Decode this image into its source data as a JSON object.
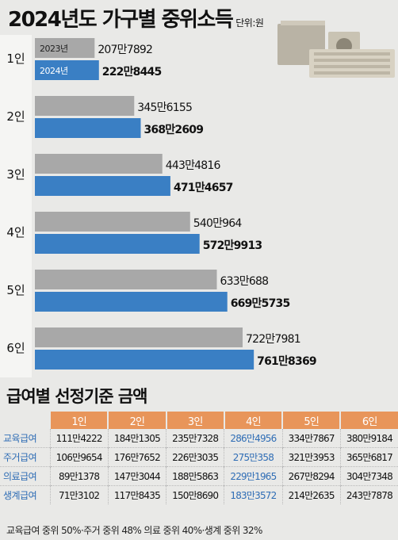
{
  "title": "2024년도 가구별 중위소득",
  "unit": "단위:원",
  "chart_data": {
    "type": "bar",
    "orientation": "horizontal",
    "title": "2024년도 가구별 중위소득",
    "unit": "단위:원",
    "categories": [
      "1인",
      "2인",
      "3인",
      "4인",
      "5인",
      "6인"
    ],
    "series": [
      {
        "name": "2023년",
        "color": "#a8a8a8",
        "values": [
          2077892,
          3456155,
          4434816,
          5400964,
          6330688,
          7227981
        ],
        "labels": [
          "207만7892",
          "345만6155",
          "443만4816",
          "540만964",
          "633만688",
          "722만7981"
        ]
      },
      {
        "name": "2024년",
        "color": "#3a7fc4",
        "values": [
          2228445,
          3682609,
          4714657,
          5729913,
          6695735,
          7618369
        ],
        "labels": [
          "222만8445",
          "368만2609",
          "471만4657",
          "572만9913",
          "669만5735",
          "761만8369"
        ]
      }
    ],
    "legend": "inside-first-bars"
  },
  "benefits": {
    "title": "급여별 선정기준 금액",
    "columns": [
      "1인",
      "2인",
      "3인",
      "4인",
      "5인",
      "6인"
    ],
    "highlight_column": 3,
    "rows": [
      {
        "label": "교육급여",
        "values": [
          "111만4222",
          "184만1305",
          "235만7328",
          "286만4956",
          "334만7867",
          "380만9184"
        ]
      },
      {
        "label": "주거급여",
        "values": [
          "106만9654",
          "176만7652",
          "226만3035",
          "275만358",
          "321만3953",
          "365만6817"
        ]
      },
      {
        "label": "의료급여",
        "values": [
          "89만1378",
          "147만3044",
          "188만5863",
          "229만1965",
          "267만8294",
          "304만7348"
        ]
      },
      {
        "label": "생계급여",
        "values": [
          "71만3102",
          "117만8435",
          "150만8690",
          "183만3572",
          "214만2635",
          "243만7878"
        ]
      }
    ],
    "footnote": "교육급여 중위 50%·주거 중위 48% 의료 중위 40%·생계 중위 32%"
  }
}
